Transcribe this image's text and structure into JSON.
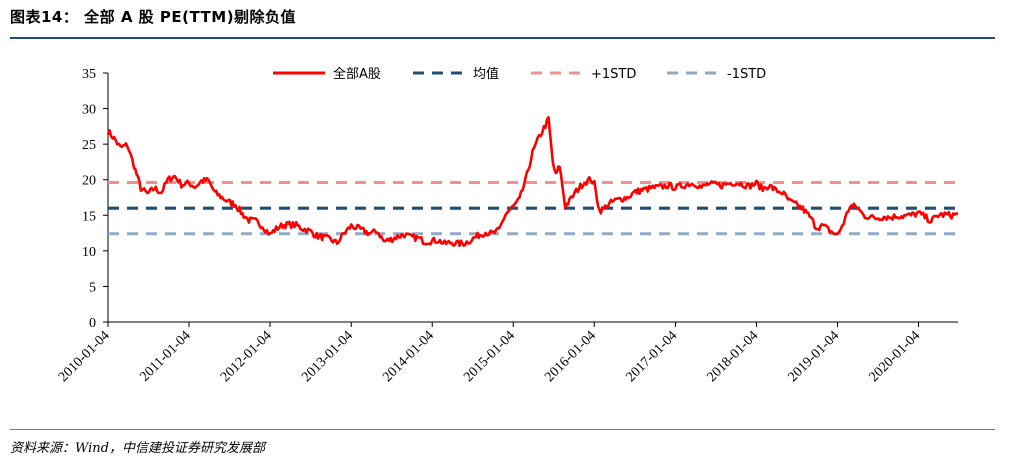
{
  "header": {
    "title": "图表14：   全部 A 股 PE(TTM)剔除负值"
  },
  "footer": {
    "source": "资料来源：Wind，中信建投证券研究发展部"
  },
  "chart_data": {
    "type": "line",
    "title": "图表14：   全部 A 股 PE(TTM)剔除负值",
    "xlabel": "",
    "ylabel": "",
    "ylim": [
      0,
      35
    ],
    "yticks": [
      0,
      5,
      10,
      15,
      20,
      25,
      30,
      35
    ],
    "xlim": [
      "2010-01-04",
      "2020-06-30"
    ],
    "xticks": [
      "2010-01-04",
      "2011-01-04",
      "2012-01-04",
      "2013-01-04",
      "2014-01-04",
      "2015-01-04",
      "2016-01-04",
      "2017-01-04",
      "2018-01-04",
      "2019-01-04",
      "2020-01-04"
    ],
    "grid": false,
    "legend": "top",
    "series": [
      {
        "name": "全部A股",
        "style": "solid",
        "color": "#ff0000",
        "x": [
          "2010-01-04",
          "2010-02-01",
          "2010-03-01",
          "2010-04-01",
          "2010-05-01",
          "2010-06-01",
          "2010-07-01",
          "2010-08-01",
          "2010-09-01",
          "2010-10-01",
          "2010-11-01",
          "2010-12-01",
          "2011-01-04",
          "2011-02-01",
          "2011-03-01",
          "2011-04-01",
          "2011-05-01",
          "2011-06-01",
          "2011-07-01",
          "2011-08-01",
          "2011-09-01",
          "2011-10-01",
          "2011-11-01",
          "2011-12-01",
          "2012-01-04",
          "2012-02-01",
          "2012-03-01",
          "2012-04-01",
          "2012-05-01",
          "2012-06-01",
          "2012-07-01",
          "2012-08-01",
          "2012-09-01",
          "2012-10-01",
          "2012-11-01",
          "2012-12-01",
          "2013-01-04",
          "2013-02-01",
          "2013-03-01",
          "2013-04-01",
          "2013-05-01",
          "2013-06-01",
          "2013-07-01",
          "2013-08-01",
          "2013-09-01",
          "2013-10-01",
          "2013-11-01",
          "2013-12-01",
          "2014-01-04",
          "2014-02-01",
          "2014-03-01",
          "2014-04-01",
          "2014-05-01",
          "2014-06-01",
          "2014-07-01",
          "2014-08-01",
          "2014-09-01",
          "2014-10-01",
          "2014-11-01",
          "2014-12-01",
          "2015-01-04",
          "2015-02-01",
          "2015-03-01",
          "2015-04-01",
          "2015-05-01",
          "2015-06-12",
          "2015-07-01",
          "2015-07-15",
          "2015-08-01",
          "2015-08-26",
          "2015-09-15",
          "2015-10-15",
          "2015-11-15",
          "2015-12-20",
          "2016-01-04",
          "2016-01-28",
          "2016-02-15",
          "2016-03-01",
          "2016-04-01",
          "2016-05-01",
          "2016-06-01",
          "2016-07-01",
          "2016-08-01",
          "2016-09-01",
          "2016-10-01",
          "2016-11-01",
          "2016-12-01",
          "2017-01-04",
          "2017-02-01",
          "2017-03-01",
          "2017-04-01",
          "2017-05-01",
          "2017-06-01",
          "2017-07-01",
          "2017-08-01",
          "2017-09-01",
          "2017-10-01",
          "2017-11-01",
          "2017-12-01",
          "2018-01-04",
          "2018-02-01",
          "2018-03-01",
          "2018-04-01",
          "2018-05-01",
          "2018-06-01",
          "2018-07-01",
          "2018-08-01",
          "2018-09-01",
          "2018-10-01",
          "2018-11-01",
          "2018-12-01",
          "2019-01-04",
          "2019-02-01",
          "2019-03-01",
          "2019-04-01",
          "2019-05-01",
          "2019-06-01",
          "2019-07-01",
          "2019-08-01",
          "2019-09-01",
          "2019-10-01",
          "2019-11-01",
          "2019-12-01",
          "2020-01-04",
          "2020-02-01",
          "2020-03-01",
          "2020-04-01",
          "2020-05-01",
          "2020-06-01",
          "2020-06-30"
        ],
        "values": [
          26.8,
          25.8,
          24.5,
          24.9,
          22.0,
          18.8,
          18.0,
          18.8,
          18.2,
          20.0,
          20.5,
          19.3,
          19.5,
          19.0,
          19.8,
          19.9,
          18.2,
          17.5,
          16.9,
          16.5,
          15.2,
          14.3,
          14.2,
          13.5,
          12.3,
          13.1,
          13.6,
          13.7,
          13.6,
          13.1,
          12.8,
          12.1,
          11.9,
          11.6,
          11.1,
          12.4,
          13.5,
          13.2,
          12.8,
          12.4,
          12.8,
          11.3,
          11.6,
          12.0,
          12.3,
          11.9,
          11.8,
          11.3,
          11.4,
          11.5,
          11.0,
          11.2,
          11.0,
          11.1,
          11.6,
          12.2,
          12.6,
          12.4,
          12.9,
          15.2,
          16.2,
          17.2,
          20.0,
          23.8,
          26.0,
          28.5,
          22.5,
          20.6,
          22.0,
          16.3,
          17.0,
          18.4,
          19.5,
          20.1,
          19.4,
          15.6,
          15.9,
          16.4,
          17.0,
          17.3,
          17.5,
          18.2,
          18.5,
          18.7,
          18.9,
          19.0,
          19.2,
          18.9,
          19.1,
          19.4,
          19.5,
          18.9,
          19.4,
          19.3,
          19.2,
          19.5,
          19.6,
          19.4,
          19.1,
          19.5,
          18.7,
          19.2,
          18.5,
          18.2,
          17.0,
          16.5,
          15.9,
          14.8,
          13.3,
          13.5,
          12.8,
          12.2,
          14.0,
          16.3,
          16.2,
          15.0,
          14.7,
          14.6,
          14.8,
          14.7,
          14.9,
          14.9,
          15.0,
          15.3,
          14.8,
          14.2,
          15.0,
          15.1,
          15.0,
          15.2
        ]
      },
      {
        "name": "均值",
        "style": "dashed",
        "color": "#1f4e79",
        "value": 16.0
      },
      {
        "name": "+1STD",
        "style": "dashed",
        "color": "#f4908c",
        "value": 19.6
      },
      {
        "name": "-1STD",
        "style": "dashed",
        "color": "#8faac5",
        "value": 12.4
      }
    ]
  }
}
